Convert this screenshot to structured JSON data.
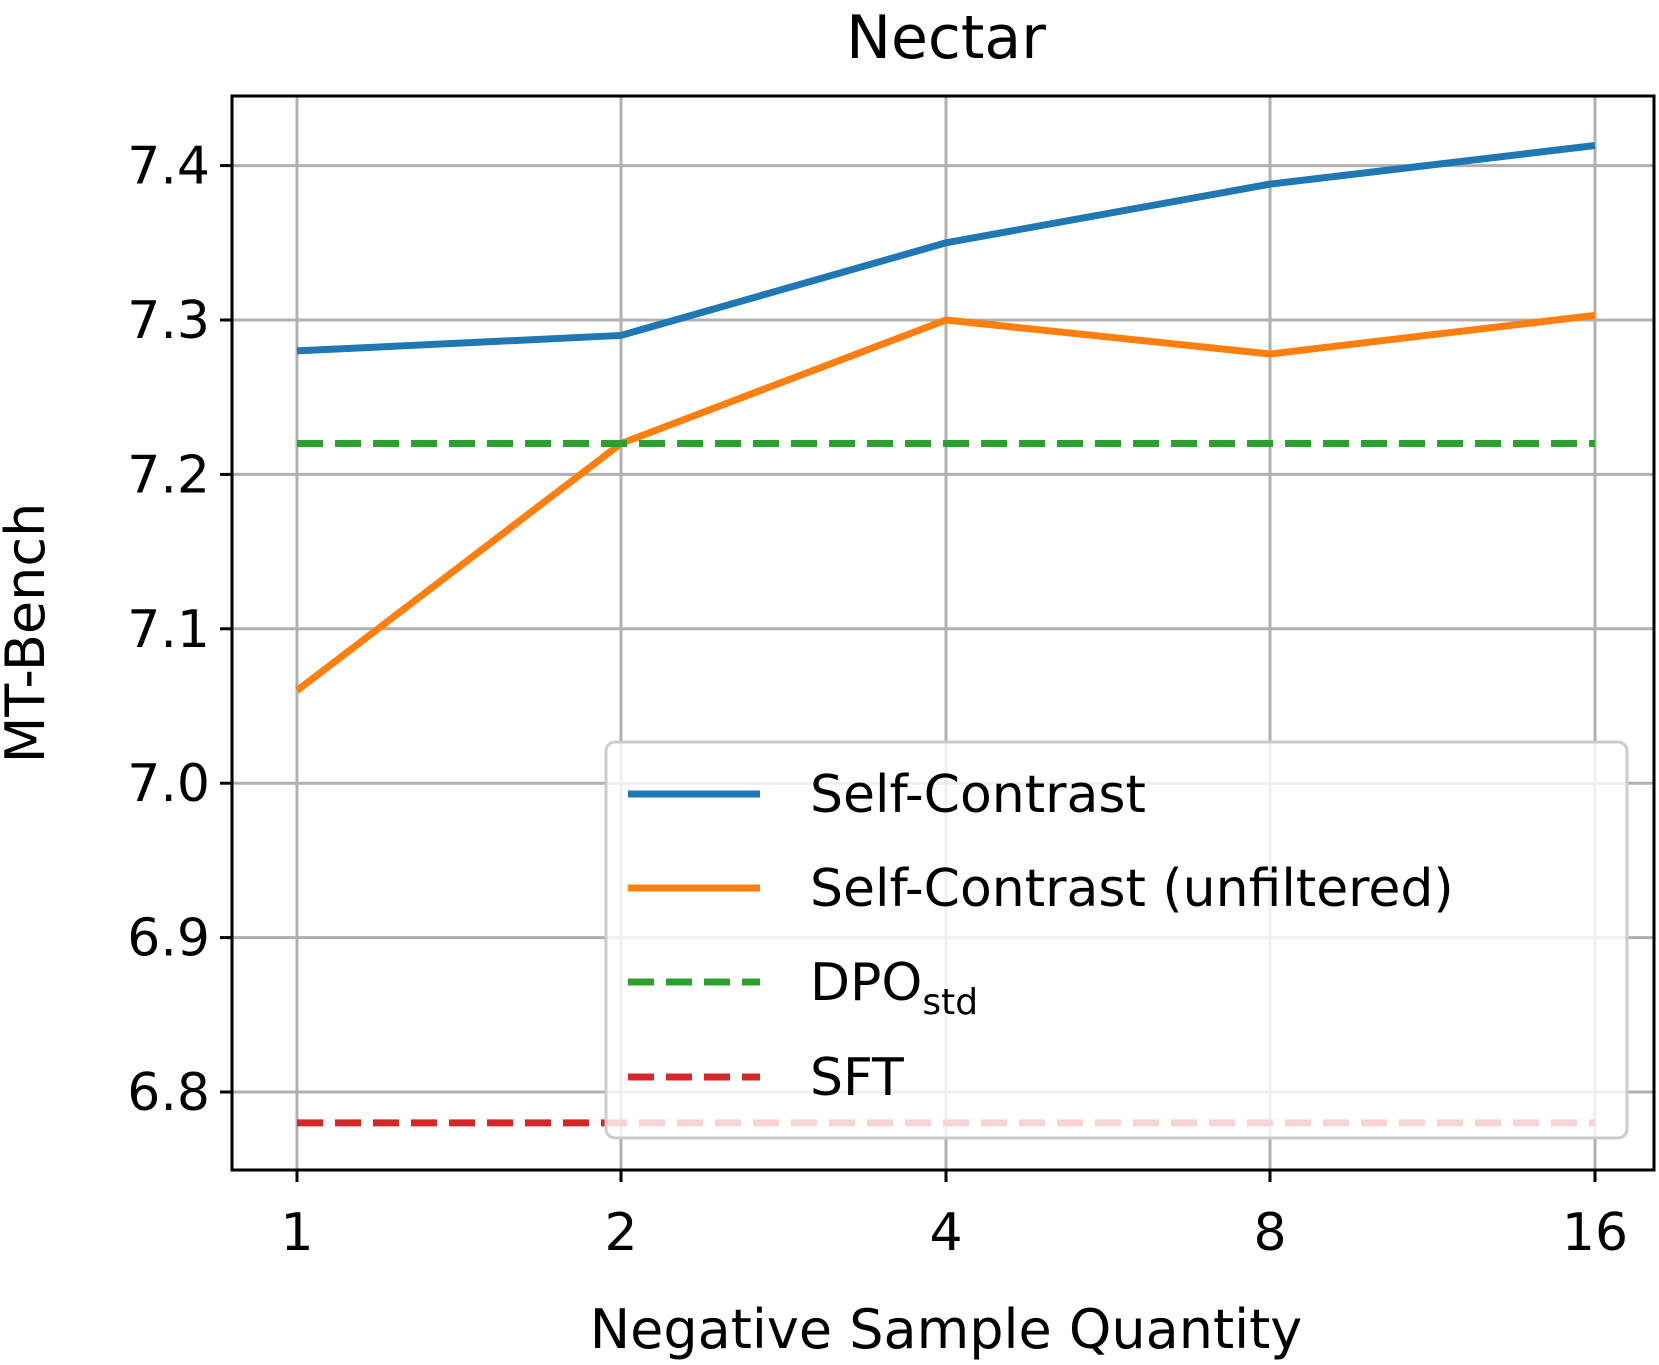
{
  "chart_data": {
    "type": "line",
    "title": "Nectar",
    "xlabel": "Negative Sample Quantity",
    "ylabel": "MT-Bench",
    "x": [
      1,
      2,
      4,
      8,
      16
    ],
    "x_tick_labels": [
      "1",
      "2",
      "4",
      "8",
      "16"
    ],
    "x_scale": "log2",
    "y_ticks": [
      6.8,
      6.9,
      7.0,
      7.1,
      7.2,
      7.3,
      7.4
    ],
    "y_tick_labels": [
      "6.8",
      "6.9",
      "7.0",
      "7.1",
      "7.2",
      "7.3",
      "7.4"
    ],
    "ylim": [
      6.75,
      7.445
    ],
    "grid": true,
    "legend_position": "lower-right",
    "series": [
      {
        "name": "Self-Contrast",
        "values": [
          7.28,
          7.29,
          7.35,
          7.388,
          7.413
        ],
        "color": "#1f77b4",
        "style": "solid"
      },
      {
        "name": "Self-Contrast (unfiltered)",
        "values": [
          7.06,
          7.22,
          7.3,
          7.278,
          7.303
        ],
        "color": "#ff7f0e",
        "style": "solid"
      },
      {
        "name": "DPO",
        "name_subscript": "std",
        "values": [
          7.22,
          7.22,
          7.22,
          7.22,
          7.22
        ],
        "color": "#2ca02c",
        "style": "dashed"
      },
      {
        "name": "SFT",
        "values": [
          6.78,
          6.78,
          6.78,
          6.78,
          6.78
        ],
        "color": "#d62728",
        "style": "dashed"
      }
    ]
  }
}
